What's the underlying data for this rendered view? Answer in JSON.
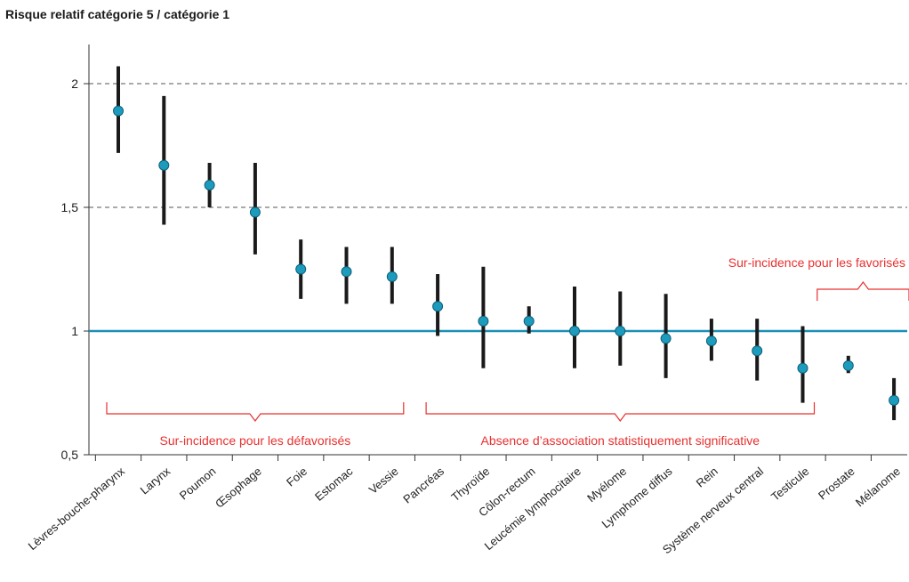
{
  "chart_data": {
    "type": "scatter",
    "title": "Risque relatif catégorie 5 / catégorie 1",
    "xlabel": "",
    "ylabel": "",
    "ylim": [
      0.5,
      2.2
    ],
    "yticks": [
      0.5,
      1,
      1.5,
      2
    ],
    "ytick_labels": [
      "0,5",
      "1",
      "1,5",
      "2"
    ],
    "dashed_gridlines": [
      1.5,
      2
    ],
    "reference_line": 1,
    "grid": "dashed horizontal at 1,5 and 2",
    "categories": [
      "Lèvres-bouche-pharynx",
      "Larynx",
      "Poumon",
      "Œsophage",
      "Foie",
      "Estomac",
      "Vessie",
      "Pancréas",
      "Thyroïde",
      "Côlon-rectum",
      "Leucémie lymphocitaire",
      "Myélome",
      "Lymphome diffus",
      "Rein",
      "Système nerveux central",
      "Testicule",
      "Prostate",
      "Mélanome"
    ],
    "series": [
      {
        "values": [
          1.89,
          1.67,
          1.59,
          1.48,
          1.25,
          1.24,
          1.22,
          1.1,
          1.04,
          1.04,
          1.0,
          1.0,
          0.97,
          0.96,
          0.92,
          0.85,
          0.86,
          0.72
        ],
        "lower": [
          1.72,
          1.43,
          1.5,
          1.31,
          1.13,
          1.11,
          1.11,
          0.98,
          0.85,
          0.99,
          0.85,
          0.86,
          0.81,
          0.88,
          0.8,
          0.71,
          0.83,
          0.64
        ],
        "upper": [
          2.07,
          1.95,
          1.68,
          1.68,
          1.37,
          1.34,
          1.34,
          1.23,
          1.26,
          1.1,
          1.18,
          1.16,
          1.15,
          1.05,
          1.05,
          1.02,
          0.9,
          0.81
        ]
      }
    ],
    "annotations": [
      {
        "text": "Sur-incidence pour les défavorisés",
        "from": 0,
        "to": 6,
        "position": "below"
      },
      {
        "text": "Absence d’association statistiquement significative",
        "from": 7,
        "to": 15,
        "position": "below"
      },
      {
        "text": "Sur-incidence pour les favorisés",
        "from": 16,
        "to": 17,
        "position": "above"
      }
    ],
    "colors": {
      "point": "#1d9bbd",
      "errorbar": "#1a1a1a",
      "reference_line": "#1a8fb5",
      "annotation": "#e8302f",
      "grid": "#555555"
    }
  }
}
